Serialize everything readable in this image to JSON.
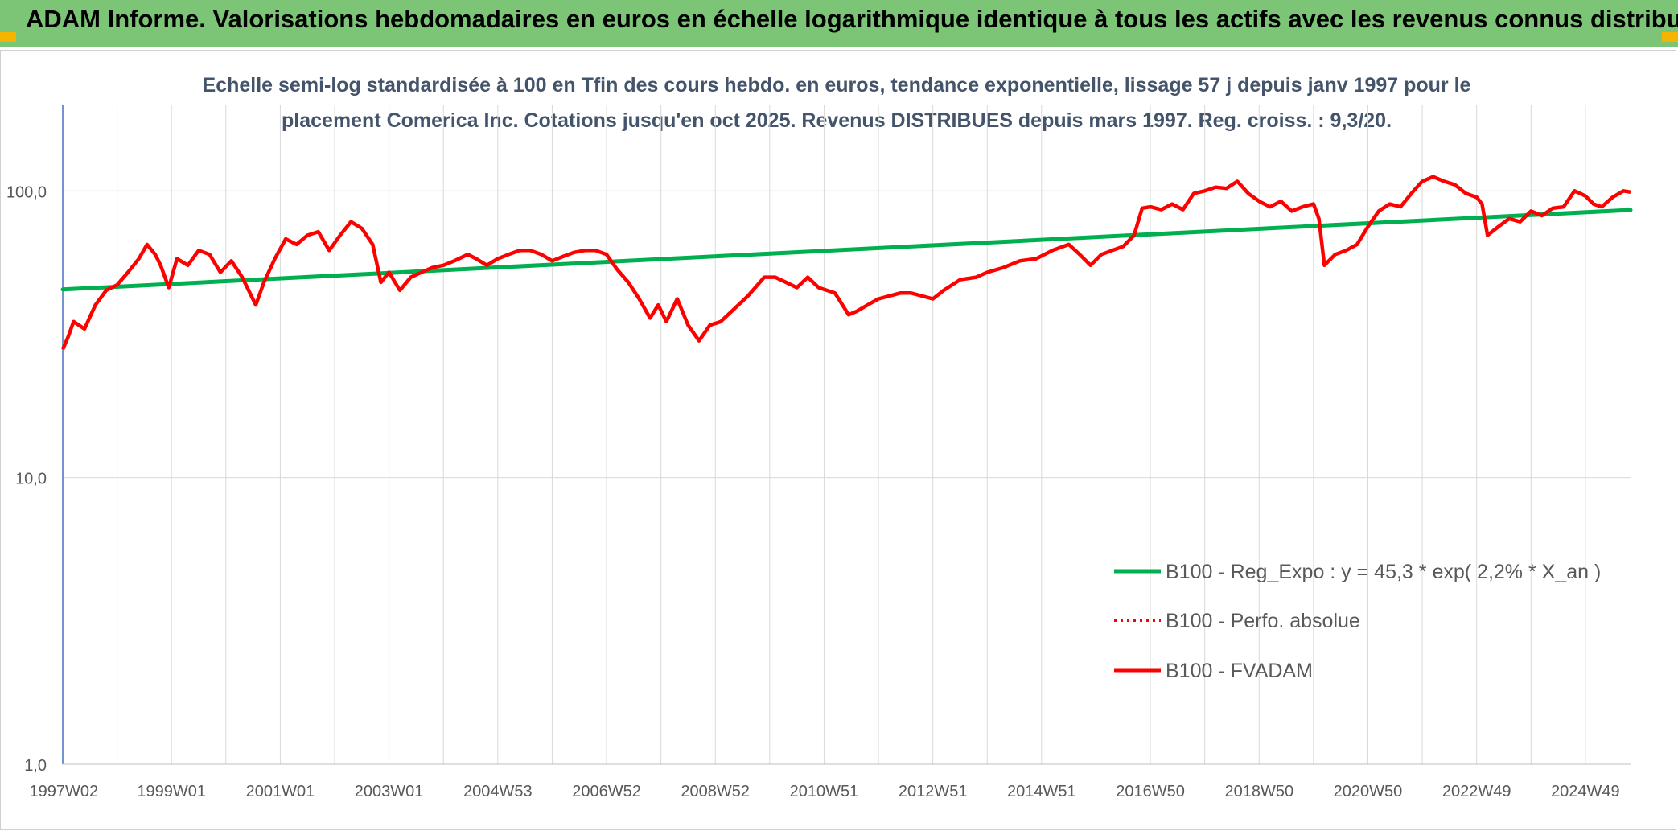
{
  "header": {
    "title": "ADAM Informe. Valorisations hebdomadaires en euros en échelle logarithmique identique à tous les actifs avec les revenus connus distribués"
  },
  "colors": {
    "header_bg": "#7cc576",
    "corner": "#f5b400",
    "title_text": "#44546a",
    "grid": "#d9d9d9",
    "axis": "#4472c4",
    "trend": "#00b050",
    "fvadam": "#ff0000",
    "perfo": "#ff0000"
  },
  "chart_data": {
    "type": "line",
    "title_line1": "Echelle semi-log standardisée à 100 en Tfin des cours hebdo. en euros, tendance exponentielle, lissage 57 j depuis janv 1997 pour le",
    "title_line2": "placement Comerica Inc. Cotations jusqu'en oct 2025. Revenus DISTRIBUES depuis mars 1997. Reg. croiss. : 9,3/20.",
    "y_scale": "log",
    "ylim": [
      1,
      200
    ],
    "xlim": [
      1997.0,
      2025.83
    ],
    "grid": true,
    "legend_position": "bottom-right",
    "y_ticks": [
      {
        "value": 100,
        "label": "100,0"
      },
      {
        "value": 10,
        "label": "10,0"
      },
      {
        "value": 1,
        "label": "1,0"
      }
    ],
    "x_ticks": [
      {
        "x": 1997.02,
        "label": "1997W02"
      },
      {
        "x": 1999.0,
        "label": "1999W01"
      },
      {
        "x": 2001.0,
        "label": "2001W01"
      },
      {
        "x": 2003.0,
        "label": "2003W01"
      },
      {
        "x": 2005.0,
        "label": "2004W53"
      },
      {
        "x": 2007.0,
        "label": "2006W52"
      },
      {
        "x": 2009.0,
        "label": "2008W52"
      },
      {
        "x": 2011.0,
        "label": "2010W51"
      },
      {
        "x": 2013.0,
        "label": "2012W51"
      },
      {
        "x": 2015.0,
        "label": "2014W51"
      },
      {
        "x": 2017.0,
        "label": "2016W50"
      },
      {
        "x": 2019.0,
        "label": "2018W50"
      },
      {
        "x": 2021.0,
        "label": "2020W50"
      },
      {
        "x": 2023.0,
        "label": "2022W49"
      },
      {
        "x": 2025.0,
        "label": "2024W49"
      }
    ],
    "x_gridlines": [
      1997.0,
      1998.0,
      1999.0,
      2000.0,
      2001.0,
      2002.0,
      2003.0,
      2004.0,
      2005.0,
      2006.0,
      2007.0,
      2008.0,
      2009.0,
      2010.0,
      2011.0,
      2012.0,
      2013.0,
      2014.0,
      2015.0,
      2016.0,
      2017.0,
      2018.0,
      2019.0,
      2020.0,
      2021.0,
      2022.0,
      2023.0,
      2024.0,
      2025.0
    ],
    "series": [
      {
        "name": "B100 - Reg_Expo : y = 45,3 * exp( 2,2% *  X_an )",
        "style": "solid",
        "points": [
          [
            1997.0,
            45.3
          ],
          [
            2025.83,
            85.8
          ]
        ]
      },
      {
        "name": "B100 - Perfo. absolue",
        "style": "dotted",
        "points": []
      },
      {
        "name": "B100 - FVADAM",
        "style": "solid",
        "points": [
          [
            1997.0,
            28
          ],
          [
            1997.1,
            31
          ],
          [
            1997.2,
            35
          ],
          [
            1997.4,
            33
          ],
          [
            1997.6,
            40
          ],
          [
            1997.8,
            45
          ],
          [
            1998.0,
            47
          ],
          [
            1998.2,
            52
          ],
          [
            1998.4,
            58
          ],
          [
            1998.55,
            65
          ],
          [
            1998.7,
            60
          ],
          [
            1998.8,
            55
          ],
          [
            1998.95,
            46
          ],
          [
            1999.1,
            58
          ],
          [
            1999.3,
            55
          ],
          [
            1999.5,
            62
          ],
          [
            1999.7,
            60
          ],
          [
            1999.9,
            52
          ],
          [
            2000.1,
            57
          ],
          [
            2000.3,
            50
          ],
          [
            2000.55,
            40
          ],
          [
            2000.7,
            48
          ],
          [
            2000.9,
            58
          ],
          [
            2001.1,
            68
          ],
          [
            2001.3,
            65
          ],
          [
            2001.5,
            70
          ],
          [
            2001.7,
            72
          ],
          [
            2001.9,
            62
          ],
          [
            2002.1,
            70
          ],
          [
            2002.3,
            78
          ],
          [
            2002.5,
            74
          ],
          [
            2002.7,
            65
          ],
          [
            2002.85,
            48
          ],
          [
            2003.0,
            52
          ],
          [
            2003.2,
            45
          ],
          [
            2003.4,
            50
          ],
          [
            2003.6,
            52
          ],
          [
            2003.8,
            54
          ],
          [
            2004.0,
            55
          ],
          [
            2004.2,
            57
          ],
          [
            2004.45,
            60
          ],
          [
            2004.6,
            58
          ],
          [
            2004.8,
            55
          ],
          [
            2005.0,
            58
          ],
          [
            2005.2,
            60
          ],
          [
            2005.4,
            62
          ],
          [
            2005.6,
            62
          ],
          [
            2005.8,
            60
          ],
          [
            2006.0,
            57
          ],
          [
            2006.2,
            59
          ],
          [
            2006.4,
            61
          ],
          [
            2006.6,
            62
          ],
          [
            2006.8,
            62
          ],
          [
            2007.0,
            60
          ],
          [
            2007.2,
            53
          ],
          [
            2007.4,
            48
          ],
          [
            2007.6,
            42
          ],
          [
            2007.8,
            36
          ],
          [
            2007.95,
            40
          ],
          [
            2008.1,
            35
          ],
          [
            2008.3,
            42
          ],
          [
            2008.5,
            34
          ],
          [
            2008.7,
            30
          ],
          [
            2008.9,
            34
          ],
          [
            2009.1,
            35
          ],
          [
            2009.3,
            38
          ],
          [
            2009.6,
            43
          ],
          [
            2009.9,
            50
          ],
          [
            2010.1,
            50
          ],
          [
            2010.3,
            48
          ],
          [
            2010.5,
            46
          ],
          [
            2010.7,
            50
          ],
          [
            2010.9,
            46
          ],
          [
            2011.2,
            44
          ],
          [
            2011.45,
            37
          ],
          [
            2011.6,
            38
          ],
          [
            2011.8,
            40
          ],
          [
            2012.0,
            42
          ],
          [
            2012.2,
            43
          ],
          [
            2012.4,
            44
          ],
          [
            2012.6,
            44
          ],
          [
            2012.8,
            43
          ],
          [
            2013.0,
            42
          ],
          [
            2013.2,
            45
          ],
          [
            2013.5,
            49
          ],
          [
            2013.8,
            50
          ],
          [
            2014.0,
            52
          ],
          [
            2014.3,
            54
          ],
          [
            2014.6,
            57
          ],
          [
            2014.9,
            58
          ],
          [
            2015.2,
            62
          ],
          [
            2015.5,
            65
          ],
          [
            2015.7,
            60
          ],
          [
            2015.9,
            55
          ],
          [
            2016.1,
            60
          ],
          [
            2016.3,
            62
          ],
          [
            2016.5,
            64
          ],
          [
            2016.7,
            70
          ],
          [
            2016.85,
            87
          ],
          [
            2017.0,
            88
          ],
          [
            2017.2,
            86
          ],
          [
            2017.4,
            90
          ],
          [
            2017.6,
            86
          ],
          [
            2017.8,
            98
          ],
          [
            2018.0,
            100
          ],
          [
            2018.2,
            103
          ],
          [
            2018.4,
            102
          ],
          [
            2018.6,
            108
          ],
          [
            2018.8,
            98
          ],
          [
            2019.0,
            92
          ],
          [
            2019.2,
            88
          ],
          [
            2019.4,
            92
          ],
          [
            2019.6,
            85
          ],
          [
            2019.8,
            88
          ],
          [
            2020.0,
            90
          ],
          [
            2020.1,
            80
          ],
          [
            2020.2,
            55
          ],
          [
            2020.4,
            60
          ],
          [
            2020.6,
            62
          ],
          [
            2020.8,
            65
          ],
          [
            2021.0,
            75
          ],
          [
            2021.2,
            85
          ],
          [
            2021.4,
            90
          ],
          [
            2021.6,
            88
          ],
          [
            2021.8,
            98
          ],
          [
            2022.0,
            108
          ],
          [
            2022.2,
            112
          ],
          [
            2022.4,
            108
          ],
          [
            2022.6,
            105
          ],
          [
            2022.8,
            98
          ],
          [
            2023.0,
            95
          ],
          [
            2023.1,
            90
          ],
          [
            2023.2,
            70
          ],
          [
            2023.4,
            75
          ],
          [
            2023.6,
            80
          ],
          [
            2023.8,
            78
          ],
          [
            2024.0,
            85
          ],
          [
            2024.2,
            82
          ],
          [
            2024.4,
            87
          ],
          [
            2024.6,
            88
          ],
          [
            2024.8,
            100
          ],
          [
            2025.0,
            96
          ],
          [
            2025.15,
            90
          ],
          [
            2025.3,
            88
          ],
          [
            2025.5,
            95
          ],
          [
            2025.7,
            100
          ],
          [
            2025.83,
            99
          ]
        ]
      }
    ]
  }
}
